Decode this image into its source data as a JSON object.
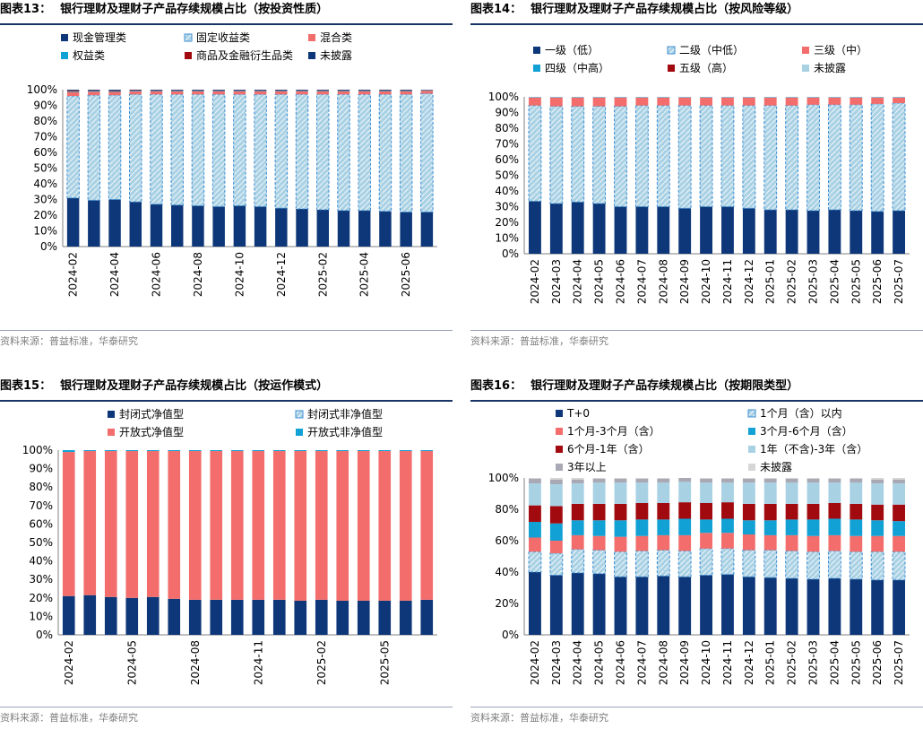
{
  "source_note": "资料来源：普益标准，华泰研究",
  "colors": {
    "navy": "#0d3778",
    "hatch_bg": "#a9d1e4",
    "hatch_line": "#3d8ed3",
    "red": "#f26d6b",
    "teal": "#12a1d4",
    "darkred": "#a10b10",
    "lightblue": "#a8d2e4",
    "grey": "#a9a9b6",
    "lightgrey": "#d6d6d6",
    "axis": "#808080",
    "title_bar": "#1a3466"
  },
  "chart_data": [
    {
      "id": "c13",
      "type": "bar",
      "stacked": true,
      "title_num": "图表13：",
      "title": "银行理财及理财子产品存续规模占比（按投资性质）",
      "ylim": [
        0,
        100
      ],
      "yticks": [
        0,
        10,
        20,
        30,
        40,
        50,
        60,
        70,
        80,
        90,
        100
      ],
      "ytick_labels": [
        "0%",
        "10%",
        "20%",
        "30%",
        "40%",
        "50%",
        "60%",
        "70%",
        "80%",
        "90%",
        "100%"
      ],
      "categories": [
        "2024-02",
        "2024-03",
        "2024-04",
        "2024-05",
        "2024-06",
        "2024-07",
        "2024-08",
        "2024-09",
        "2024-10",
        "2024-11",
        "2024-12",
        "2025-01",
        "2025-02",
        "2025-03",
        "2025-04",
        "2025-05",
        "2025-06",
        "2025-07"
      ],
      "x_tick_labels": [
        "2024-02",
        "",
        "2024-04",
        "",
        "2024-06",
        "",
        "2024-08",
        "",
        "2024-10",
        "",
        "2024-12",
        "",
        "2025-02",
        "",
        "2025-04",
        "",
        "2025-06",
        ""
      ],
      "series": [
        {
          "name": "现金管理类",
          "style": "navy",
          "values": [
            31,
            29.5,
            30,
            28.5,
            27,
            26.5,
            26,
            25.5,
            26,
            25.5,
            24.5,
            24,
            23.5,
            23,
            23,
            22.5,
            22,
            22
          ]
        },
        {
          "name": "固定收益类",
          "style": "hatch",
          "values": [
            65,
            67,
            66.5,
            68.5,
            70,
            70.5,
            71,
            71.5,
            71,
            71.5,
            72.5,
            73,
            73.5,
            74,
            74,
            74.5,
            75,
            75.5
          ]
        },
        {
          "name": "混合类",
          "style": "red",
          "values": [
            2.5,
            2.2,
            2.1,
            2,
            1.9,
            1.9,
            1.9,
            1.9,
            1.9,
            1.9,
            1.9,
            1.9,
            1.9,
            1.9,
            1.9,
            1.9,
            1.9,
            1.8
          ]
        },
        {
          "name": "权益类",
          "style": "teal",
          "values": [
            0.5,
            0.5,
            0.5,
            0.4,
            0.4,
            0.4,
            0.4,
            0.4,
            0.4,
            0.4,
            0.4,
            0.4,
            0.4,
            0.4,
            0.4,
            0.4,
            0.4,
            0.3
          ]
        },
        {
          "name": "商品及金融衍生品类",
          "style": "darkred",
          "values": [
            0.5,
            0.4,
            0.4,
            0.3,
            0.3,
            0.3,
            0.3,
            0.3,
            0.3,
            0.3,
            0.3,
            0.3,
            0.3,
            0.3,
            0.3,
            0.3,
            0.3,
            0.2
          ]
        },
        {
          "name": "未披露",
          "style": "navy",
          "values": [
            0.5,
            0.4,
            0.5,
            0.3,
            0.4,
            0.4,
            0.4,
            0.4,
            0.4,
            0.4,
            0.4,
            0.4,
            0.4,
            0.4,
            0.4,
            0.4,
            0.4,
            0.2
          ]
        }
      ],
      "legend_columns": 3,
      "legend_position": "top"
    },
    {
      "id": "c14",
      "type": "bar",
      "stacked": true,
      "title_num": "图表14：",
      "title": "银行理财及理财子产品存续规模占比（按风险等级）",
      "ylim": [
        0,
        100
      ],
      "yticks": [
        0,
        10,
        20,
        30,
        40,
        50,
        60,
        70,
        80,
        90,
        100
      ],
      "ytick_labels": [
        "0%",
        "10%",
        "20%",
        "30%",
        "40%",
        "50%",
        "60%",
        "70%",
        "80%",
        "90%",
        "100%"
      ],
      "categories": [
        "2024-02",
        "2024-03",
        "2024-04",
        "2024-05",
        "2024-06",
        "2024-07",
        "2024-08",
        "2024-09",
        "2024-10",
        "2024-11",
        "2024-12",
        "2025-01",
        "2025-02",
        "2025-03",
        "2025-04",
        "2025-05",
        "2025-06",
        "2025-07"
      ],
      "x_tick_labels": [
        "2024-02",
        "2024-03",
        "2024-04",
        "2024-05",
        "2024-06",
        "2024-07",
        "2024-08",
        "2024-09",
        "2024-10",
        "2024-11",
        "2024-12",
        "2025-01",
        "2025-02",
        "2025-03",
        "2025-04",
        "2025-05",
        "2025-06",
        "2025-07"
      ],
      "series": [
        {
          "name": "一级（低）",
          "style": "navy",
          "values": [
            33.5,
            32,
            33,
            32,
            30,
            30,
            30,
            29,
            30,
            30,
            29,
            28,
            28,
            27.5,
            28,
            27.5,
            27,
            27.5
          ]
        },
        {
          "name": "二级（中低）",
          "style": "hatch",
          "values": [
            61,
            62,
            61,
            62,
            64,
            64.5,
            64.5,
            65.5,
            64.5,
            64.5,
            65.5,
            66.5,
            66.5,
            67.5,
            67,
            67.5,
            68.5,
            68.5
          ]
        },
        {
          "name": "三级（中）",
          "style": "red",
          "values": [
            5,
            5.5,
            5.5,
            5.5,
            5.5,
            5,
            5,
            5,
            5,
            5,
            5,
            5,
            5,
            4.5,
            4.5,
            4.5,
            4,
            3.5
          ]
        },
        {
          "name": "四级（中高）",
          "style": "teal",
          "values": [
            0.2,
            0.2,
            0.2,
            0.2,
            0.2,
            0.2,
            0.2,
            0.2,
            0.2,
            0.2,
            0.2,
            0.2,
            0.2,
            0.2,
            0.2,
            0.2,
            0.2,
            0.2
          ]
        },
        {
          "name": "五级（高）",
          "style": "darkred",
          "values": [
            0.1,
            0.1,
            0.1,
            0.1,
            0.1,
            0.1,
            0.1,
            0.1,
            0.1,
            0.1,
            0.1,
            0.1,
            0.1,
            0.1,
            0.1,
            0.1,
            0.1,
            0.1
          ]
        },
        {
          "name": "未披露",
          "style": "lightblue",
          "values": [
            0.2,
            0.2,
            0.2,
            0.2,
            0.2,
            0.2,
            0.2,
            0.2,
            0.2,
            0.2,
            0.2,
            0.2,
            0.2,
            0.2,
            0.2,
            0.2,
            0.2,
            0.2
          ]
        }
      ],
      "legend_columns": 3,
      "legend_position": "top"
    },
    {
      "id": "c15",
      "type": "bar",
      "stacked": true,
      "title_num": "图表15：",
      "title": "银行理财及理财子产品存续规模占比（按运作模式）",
      "ylim": [
        0,
        100
      ],
      "yticks": [
        0,
        10,
        20,
        30,
        40,
        50,
        60,
        70,
        80,
        90,
        100
      ],
      "ytick_labels": [
        "0%",
        "10%",
        "20%",
        "30%",
        "40%",
        "50%",
        "60%",
        "70%",
        "80%",
        "90%",
        "100%"
      ],
      "categories": [
        "2024-02",
        "2024-03",
        "2024-04",
        "2024-05",
        "2024-06",
        "2024-07",
        "2024-08",
        "2024-09",
        "2024-10",
        "2024-11",
        "2024-12",
        "2025-01",
        "2025-02",
        "2025-03",
        "2025-04",
        "2025-05",
        "2025-06",
        "2025-07"
      ],
      "x_tick_labels": [
        "2024-02",
        "",
        "",
        "2024-05",
        "",
        "",
        "2024-08",
        "",
        "",
        "2024-11",
        "",
        "",
        "2025-02",
        "",
        "",
        "2025-05",
        "",
        ""
      ],
      "series": [
        {
          "name": "封闭式净值型",
          "style": "navy",
          "values": [
            21,
            21.5,
            20.5,
            20,
            20.5,
            19.5,
            19,
            19,
            19,
            19,
            19,
            18.5,
            19,
            18.5,
            18.5,
            18.5,
            18.5,
            19
          ]
        },
        {
          "name": "封闭式非净值型",
          "style": "hatch",
          "values": [
            0,
            0,
            0,
            0,
            0,
            0,
            0,
            0,
            0,
            0,
            0,
            0,
            0,
            0,
            0,
            0,
            0,
            0
          ]
        },
        {
          "name": "开放式净值型",
          "style": "red",
          "values": [
            78,
            78,
            79,
            79.5,
            79,
            80,
            80.5,
            80.5,
            80.5,
            80.5,
            80.5,
            81,
            80.5,
            81,
            81,
            81,
            81,
            80.5
          ]
        },
        {
          "name": "开放式非净值型",
          "style": "teal",
          "values": [
            1,
            0.5,
            0.5,
            0.5,
            0.5,
            0.5,
            0.5,
            0.5,
            0.5,
            0.5,
            0.5,
            0.5,
            0.5,
            0.5,
            0.5,
            0.5,
            0.5,
            0.5
          ]
        }
      ],
      "legend_columns": 2,
      "legend_position": "top"
    },
    {
      "id": "c16",
      "type": "bar",
      "stacked": true,
      "title_num": "图表16：",
      "title": "银行理财及理财子产品存续规模占比（按期限类型）",
      "ylim": [
        0,
        100
      ],
      "yticks": [
        0,
        20,
        40,
        60,
        80,
        100
      ],
      "ytick_labels": [
        "0%",
        "20%",
        "40%",
        "60%",
        "80%",
        "100%"
      ],
      "categories": [
        "2024-02",
        "2024-03",
        "2024-04",
        "2024-05",
        "2024-06",
        "2024-07",
        "2024-08",
        "2024-09",
        "2024-10",
        "2024-11",
        "2024-12",
        "2025-01",
        "2025-02",
        "2025-03",
        "2025-04",
        "2025-05",
        "2025-06",
        "2025-07"
      ],
      "x_tick_labels": [
        "2024-02",
        "2024-03",
        "2024-04",
        "2024-05",
        "2024-06",
        "2024-07",
        "2024-08",
        "2024-09",
        "2024-10",
        "2024-11",
        "2024-12",
        "2025-01",
        "2025-02",
        "2025-03",
        "2025-04",
        "2025-05",
        "2025-06",
        "2025-07"
      ],
      "series": [
        {
          "name": "T+0",
          "style": "navy",
          "values": [
            40,
            38,
            39.5,
            39,
            37,
            37,
            37.5,
            37,
            38,
            38.5,
            37,
            36.5,
            36,
            35.5,
            36,
            35.5,
            35,
            35
          ]
        },
        {
          "name": "1个月（含）以内",
          "style": "hatch",
          "values": [
            13,
            14,
            15,
            15,
            16,
            16.5,
            16.5,
            16.5,
            17,
            16.5,
            17,
            17.5,
            17.5,
            17.5,
            17.5,
            17.5,
            18,
            18
          ]
        },
        {
          "name": "1个月-3个月（含）",
          "style": "red",
          "values": [
            9,
            8,
            9,
            9,
            9.5,
            9.5,
            9.5,
            10,
            10,
            10,
            10,
            9.5,
            10,
            10,
            10,
            10,
            10,
            10
          ]
        },
        {
          "name": "3个月-6个月（含）",
          "style": "teal",
          "values": [
            10,
            11,
            9.5,
            10,
            10.5,
            10.5,
            10,
            10.5,
            8.5,
            9,
            9,
            9.5,
            10,
            10.5,
            10.5,
            10.5,
            10,
            9.5
          ]
        },
        {
          "name": "6个月-1年（含）",
          "style": "darkred",
          "values": [
            10.5,
            11,
            10.5,
            10.5,
            10.5,
            10.5,
            10.5,
            10.5,
            10.5,
            10.5,
            10.5,
            10.5,
            10,
            10,
            10,
            10,
            10,
            10.5
          ]
        },
        {
          "name": "1年（不含)-3年（含）",
          "style": "lightblue",
          "values": [
            14,
            14,
            13,
            13.5,
            13.5,
            13,
            13,
            13,
            13,
            12.5,
            13.5,
            13.5,
            13.5,
            13.5,
            13,
            13.5,
            13.5,
            13.5
          ]
        },
        {
          "name": "3年以上",
          "style": "grey",
          "values": [
            3,
            3,
            2.5,
            2.5,
            2.5,
            2.5,
            2.5,
            2.5,
            2.5,
            2.5,
            2.5,
            2.5,
            2.5,
            2.5,
            2.5,
            2.5,
            2.5,
            2.5
          ]
        },
        {
          "name": "未披露",
          "style": "lightgrey",
          "values": [
            0.5,
            1,
            1,
            0.5,
            0.5,
            0.5,
            0.5,
            0.5,
            0.5,
            0.5,
            0.5,
            0.5,
            0.5,
            0.5,
            0.5,
            0.5,
            1,
            1
          ]
        }
      ],
      "legend_columns": 2,
      "legend_position": "top"
    }
  ]
}
